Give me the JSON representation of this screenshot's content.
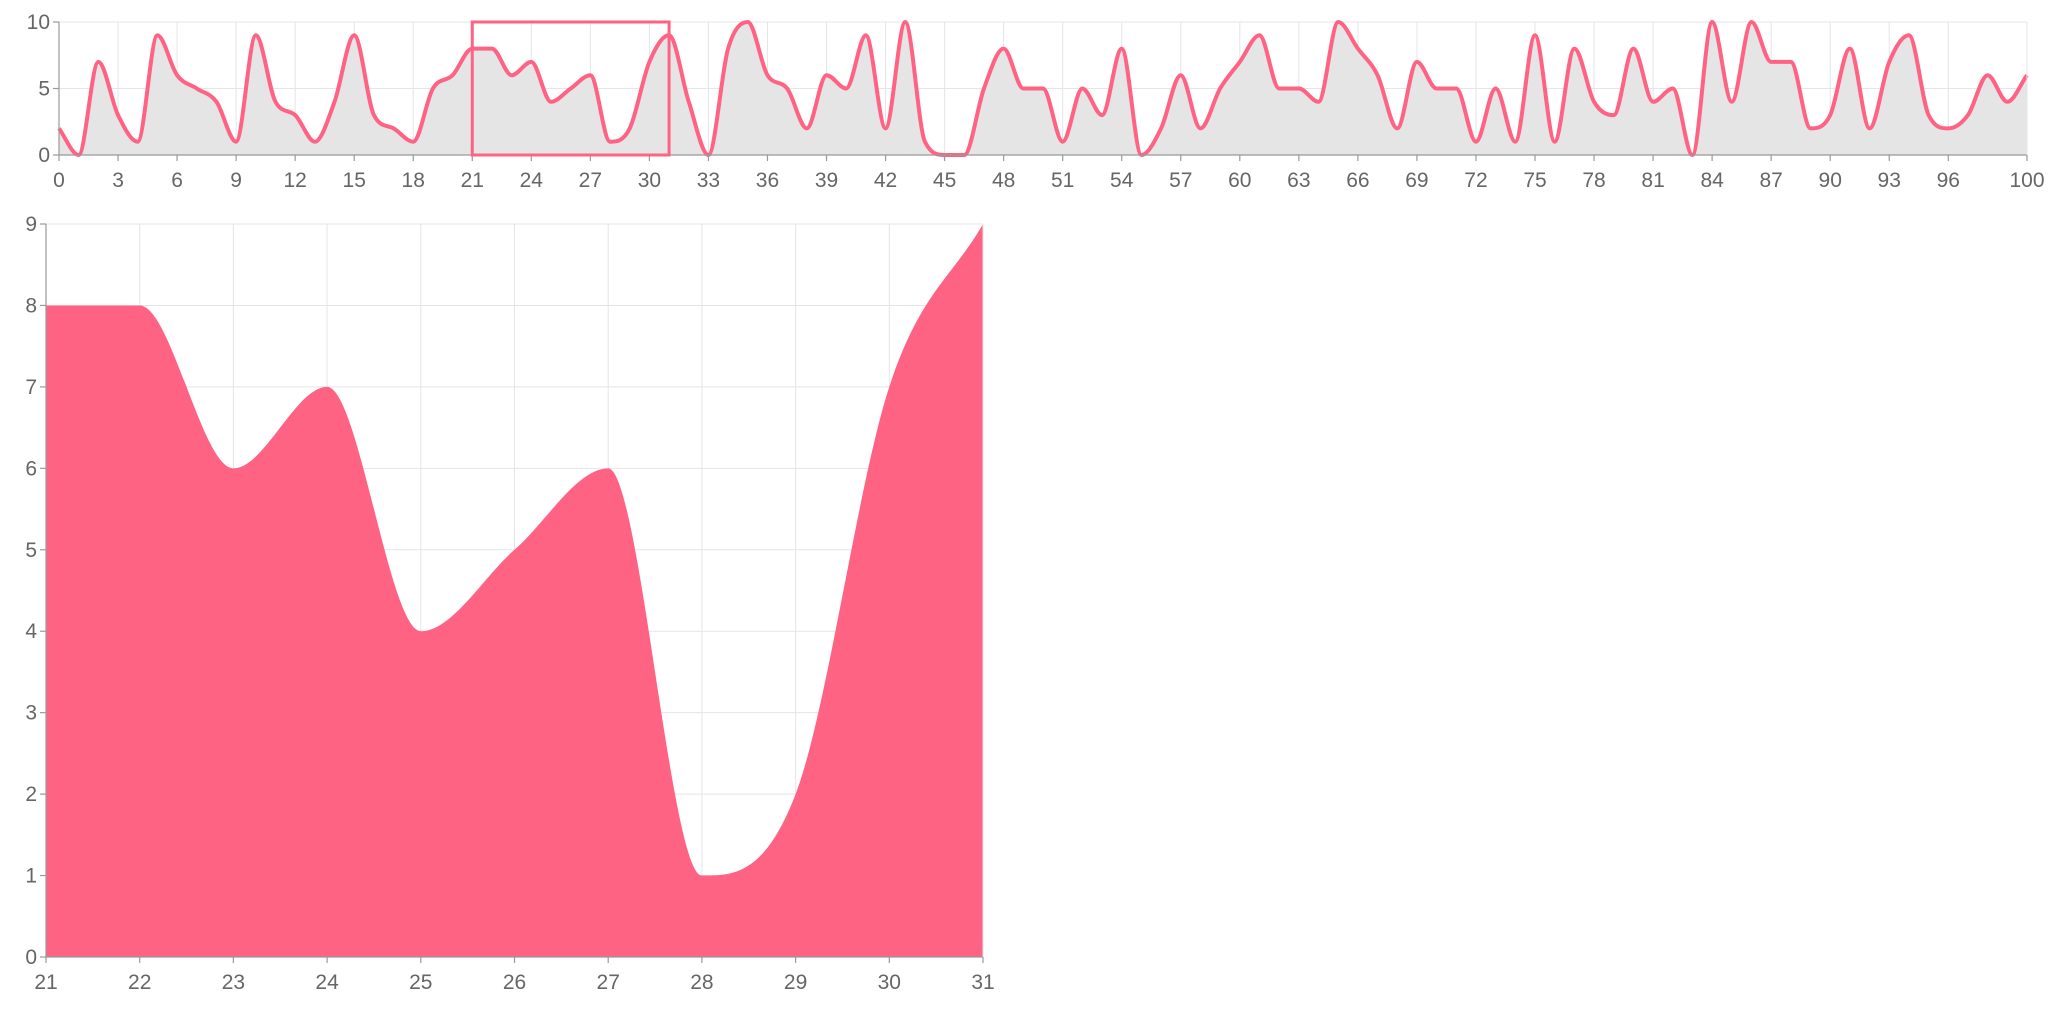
{
  "chart_data": [
    {
      "type": "line",
      "role": "overview",
      "area_fill": true,
      "x_range": [
        0,
        100
      ],
      "ylim": [
        0,
        10
      ],
      "x_ticks": [
        "0",
        "3",
        "6",
        "9",
        "12",
        "15",
        "18",
        "21",
        "24",
        "27",
        "30",
        "33",
        "36",
        "39",
        "42",
        "45",
        "48",
        "51",
        "54",
        "57",
        "60",
        "63",
        "66",
        "69",
        "72",
        "75",
        "78",
        "81",
        "84",
        "87",
        "90",
        "93",
        "96",
        "100"
      ],
      "y_ticks": [
        "0",
        "5",
        "10"
      ],
      "grid": true,
      "line_color": "#ff6384",
      "fill_color": "#e5e5e5",
      "brush": {
        "x0": 21,
        "x1": 31,
        "color": "#ff6384"
      },
      "series": [
        {
          "x": [
            0,
            1,
            2,
            3,
            4,
            5,
            6,
            7,
            8,
            9,
            10,
            11,
            12,
            13,
            14,
            15,
            16,
            17,
            18,
            19,
            20,
            21,
            22,
            23,
            24,
            25,
            26,
            27,
            28,
            29,
            30,
            31,
            32,
            33,
            34,
            35,
            36,
            37,
            38,
            39,
            40,
            41,
            42,
            43,
            44,
            45,
            46,
            47,
            48,
            49,
            50,
            51,
            52,
            53,
            54,
            55,
            56,
            57,
            58,
            59,
            60,
            61,
            62,
            63,
            64,
            65,
            66,
            67,
            68,
            69,
            70,
            71,
            72,
            73,
            74,
            75,
            76,
            77,
            78,
            79,
            80,
            81,
            82,
            83,
            84,
            85,
            86,
            87,
            88,
            89,
            90,
            91,
            92,
            93,
            94,
            95,
            96,
            97,
            98,
            99,
            100
          ],
          "values": [
            2,
            0,
            7,
            3,
            1,
            9,
            6,
            5,
            4,
            1,
            9,
            4,
            3,
            1,
            4,
            9,
            3,
            2,
            1,
            5,
            6,
            8,
            8,
            6,
            7,
            4,
            5,
            6,
            1,
            2,
            7,
            9,
            4,
            0,
            8,
            10,
            6,
            5,
            2,
            6,
            5,
            9,
            2,
            10,
            1,
            0,
            0,
            5,
            8,
            5,
            5,
            1,
            5,
            3,
            8,
            0,
            2,
            6,
            2,
            5,
            7,
            9,
            5,
            5,
            4,
            10,
            8,
            6,
            2,
            7,
            5,
            5,
            1,
            5,
            1,
            9,
            1,
            8,
            4,
            3,
            8,
            4,
            5,
            0,
            10,
            4,
            10,
            7,
            7,
            2,
            3,
            8,
            2,
            7,
            9,
            3,
            2,
            3,
            6,
            4,
            6
          ]
        }
      ]
    },
    {
      "type": "area",
      "role": "detail",
      "x_range": [
        21,
        31
      ],
      "ylim": [
        0,
        9
      ],
      "x_ticks": [
        "21",
        "22",
        "23",
        "24",
        "25",
        "26",
        "27",
        "28",
        "29",
        "30",
        "31"
      ],
      "y_ticks": [
        "0",
        "1",
        "2",
        "3",
        "4",
        "5",
        "6",
        "7",
        "8",
        "9"
      ],
      "grid": true,
      "fill_color": "#ff6384",
      "series": [
        {
          "x": [
            21,
            22,
            23,
            24,
            25,
            26,
            27,
            28,
            29,
            30,
            31
          ],
          "values": [
            8,
            8,
            6,
            7,
            4,
            5,
            6,
            1,
            2,
            7,
            9
          ]
        }
      ]
    }
  ]
}
